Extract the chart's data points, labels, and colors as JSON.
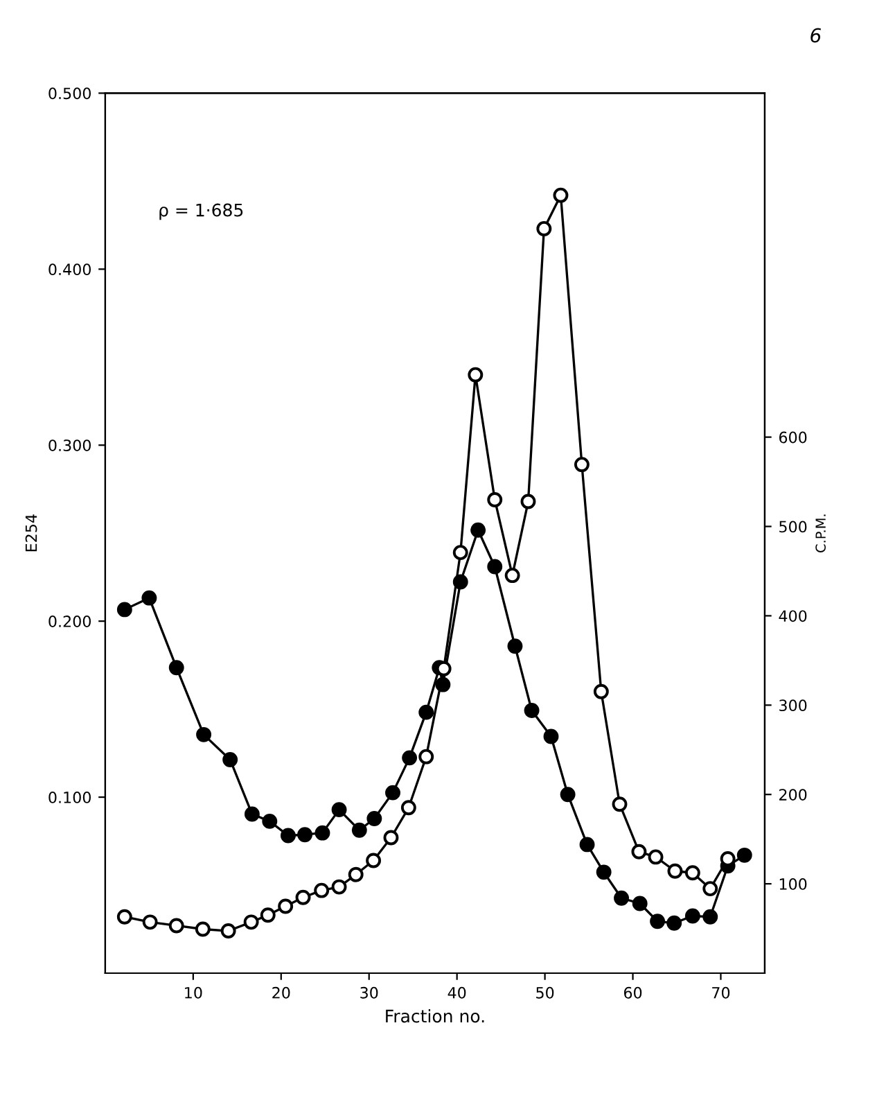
{
  "chart_data": {
    "type": "line",
    "xlabel": "Fraction no.",
    "ylabel": "E254",
    "y2label": "C.P.M.",
    "annotations": [
      "ρ = 1·685",
      "6"
    ],
    "xlim": [
      0,
      75
    ],
    "xticks": [
      10,
      20,
      30,
      40,
      50,
      60,
      70
    ],
    "ylim": [
      0,
      0.5
    ],
    "yticks": [
      {
        "value": 0.1,
        "label": "0.100"
      },
      {
        "value": 0.2,
        "label": "0.200"
      },
      {
        "value": 0.3,
        "label": "0.300"
      },
      {
        "value": 0.4,
        "label": "0.400"
      },
      {
        "value": 0.5,
        "label": "0.500"
      }
    ],
    "y2lim": [
      0,
      985
    ],
    "y2ticks": [
      100,
      200,
      300,
      400,
      500,
      600
    ],
    "marker": "circle",
    "grid": false,
    "legend": false,
    "series": [
      {
        "axis": "y",
        "color": "#000000",
        "colors": [
          "#ffffff",
          "#ffffff",
          "#ffffff",
          "#ffffff",
          "#ffffff",
          "#ffffff",
          "#ffffff",
          "#ffffff",
          "#ffffff",
          "#ffffff",
          "#ffffff",
          "#ffffff",
          "#ffffff",
          "#ffffff",
          "#ffffff",
          "#ffffff",
          "#ffffff",
          "#ffffff",
          "#ffffff",
          "#ffffff",
          "#ffffff",
          "#ffffff",
          "#ffffff",
          "#ffffff",
          "#ffffff",
          "#ffffff",
          "#ffffff",
          "#ffffff",
          "#ffffff",
          "#ffffff",
          "#ffffff",
          "#ffffff",
          "#ffffff"
        ],
        "x": [
          2.2,
          5.1,
          8.1,
          11.1,
          14.0,
          16.6,
          18.5,
          20.5,
          22.5,
          24.6,
          26.6,
          28.5,
          30.5,
          32.5,
          34.5,
          36.5,
          38.5,
          40.4,
          42.1,
          44.3,
          46.3,
          48.1,
          49.9,
          51.8,
          54.2,
          56.4,
          58.5,
          60.7,
          62.6,
          64.8,
          66.8,
          68.8,
          70.8
        ],
        "values": [
          0.032,
          0.029,
          0.027,
          0.025,
          0.024,
          0.029,
          0.033,
          0.038,
          0.043,
          0.047,
          0.049,
          0.056,
          0.064,
          0.077,
          0.094,
          0.123,
          0.173,
          0.239,
          0.34,
          0.269,
          0.226,
          0.268,
          0.423,
          0.442,
          0.289,
          0.16,
          0.096,
          0.069,
          0.066,
          0.058,
          0.057,
          0.048,
          0.065
        ]
      },
      {
        "axis": "y2",
        "color": "#000000",
        "colors": [
          "#000000",
          "#000000",
          "#000000",
          "#000000",
          "#000000",
          "#000000",
          "#000000",
          "#000000",
          "#000000",
          "#000000",
          "#000000",
          "#000000",
          "#000000",
          "#000000",
          "#000000",
          "#000000",
          "#000000",
          "#000000",
          "#000000",
          "#000000",
          "#000000",
          "#000000",
          "#000000",
          "#000000",
          "#000000",
          "#000000",
          "#000000",
          "#000000",
          "#000000",
          "#000000",
          "#000000",
          "#000000",
          "#000000",
          "#000000",
          "#000000"
        ],
        "x": [
          2.2,
          5.0,
          8.1,
          11.2,
          14.2,
          16.7,
          18.7,
          20.8,
          22.7,
          24.7,
          26.6,
          28.9,
          30.6,
          32.7,
          34.6,
          36.5,
          38.0,
          38.4,
          40.4,
          42.4,
          44.3,
          46.6,
          48.5,
          50.7,
          52.6,
          54.8,
          56.7,
          58.7,
          60.8,
          62.8,
          64.7,
          66.8,
          68.8,
          70.8,
          72.7
        ],
        "values": [
          407,
          420,
          342,
          267,
          239,
          178,
          170,
          154,
          155,
          157,
          183,
          160,
          173,
          202,
          241,
          292,
          342,
          323,
          438,
          496,
          455,
          366,
          294,
          265,
          200,
          144,
          113,
          84,
          78,
          58,
          56,
          64,
          63,
          120,
          132
        ]
      }
    ]
  }
}
